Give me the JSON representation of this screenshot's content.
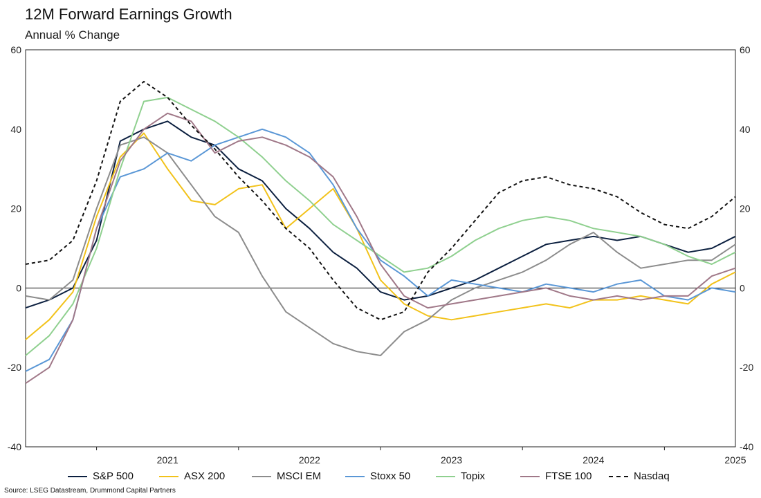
{
  "title": "12M Forward Earnings Growth",
  "subtitle": "Annual % Change",
  "source": "Source: LSEG Datastream, Drummond Capital Partners",
  "chart_data": {
    "type": "line",
    "title": "12M Forward Earnings Growth",
    "subtitle": "Annual % Change",
    "xlabel": "",
    "ylabel": "",
    "ylim": [
      -40,
      60
    ],
    "xlim": [
      "2020-07",
      "2025-07"
    ],
    "y_ticks": [
      "60",
      "40",
      "20",
      "0",
      "-20",
      "-40"
    ],
    "x_tick_labels": [
      "2021",
      "2022",
      "2023",
      "2024",
      "2025"
    ],
    "grid": false,
    "zero_line": true,
    "legend_position": "bottom",
    "series": [
      {
        "name": "S&P 500",
        "color": "#0b1f3f",
        "dash": "solid",
        "points": [
          [
            "2020-07",
            -5
          ],
          [
            "2020-09",
            -3
          ],
          [
            "2020-11",
            0
          ],
          [
            "2021-01",
            12
          ],
          [
            "2021-03",
            37
          ],
          [
            "2021-05",
            40
          ],
          [
            "2021-07",
            42
          ],
          [
            "2021-09",
            38
          ],
          [
            "2021-11",
            36
          ],
          [
            "2022-01",
            30
          ],
          [
            "2022-03",
            27
          ],
          [
            "2022-05",
            20
          ],
          [
            "2022-07",
            15
          ],
          [
            "2022-09",
            9
          ],
          [
            "2022-11",
            5
          ],
          [
            "2023-01",
            -1
          ],
          [
            "2023-03",
            -3
          ],
          [
            "2023-05",
            -2
          ],
          [
            "2023-07",
            0
          ],
          [
            "2023-09",
            2
          ],
          [
            "2023-11",
            5
          ],
          [
            "2024-01",
            8
          ],
          [
            "2024-03",
            11
          ],
          [
            "2024-05",
            12
          ],
          [
            "2024-07",
            13
          ],
          [
            "2024-09",
            12
          ],
          [
            "2024-11",
            13
          ],
          [
            "2025-01",
            11
          ],
          [
            "2025-03",
            9
          ],
          [
            "2025-05",
            10
          ],
          [
            "2025-07",
            13
          ]
        ]
      },
      {
        "name": "ASX 200",
        "color": "#f2c21a",
        "dash": "solid",
        "points": [
          [
            "2020-07",
            -13
          ],
          [
            "2020-09",
            -8
          ],
          [
            "2020-11",
            -1
          ],
          [
            "2021-01",
            18
          ],
          [
            "2021-03",
            33
          ],
          [
            "2021-05",
            39
          ],
          [
            "2021-07",
            30
          ],
          [
            "2021-09",
            22
          ],
          [
            "2021-11",
            21
          ],
          [
            "2022-01",
            25
          ],
          [
            "2022-03",
            26
          ],
          [
            "2022-05",
            15
          ],
          [
            "2022-07",
            20
          ],
          [
            "2022-09",
            25
          ],
          [
            "2022-11",
            15
          ],
          [
            "2023-01",
            2
          ],
          [
            "2023-03",
            -4
          ],
          [
            "2023-05",
            -7
          ],
          [
            "2023-07",
            -8
          ],
          [
            "2023-09",
            -7
          ],
          [
            "2023-11",
            -6
          ],
          [
            "2024-01",
            -5
          ],
          [
            "2024-03",
            -4
          ],
          [
            "2024-05",
            -5
          ],
          [
            "2024-07",
            -3
          ],
          [
            "2024-09",
            -3
          ],
          [
            "2024-11",
            -2
          ],
          [
            "2025-01",
            -3
          ],
          [
            "2025-03",
            -4
          ],
          [
            "2025-05",
            1
          ],
          [
            "2025-07",
            4
          ]
        ]
      },
      {
        "name": "MSCI EM",
        "color": "#8c8c8c",
        "dash": "solid",
        "points": [
          [
            "2020-07",
            -2
          ],
          [
            "2020-09",
            -3
          ],
          [
            "2020-11",
            2
          ],
          [
            "2021-01",
            20
          ],
          [
            "2021-03",
            36
          ],
          [
            "2021-05",
            38
          ],
          [
            "2021-07",
            34
          ],
          [
            "2021-09",
            26
          ],
          [
            "2021-11",
            18
          ],
          [
            "2022-01",
            14
          ],
          [
            "2022-03",
            3
          ],
          [
            "2022-05",
            -6
          ],
          [
            "2022-07",
            -10
          ],
          [
            "2022-09",
            -14
          ],
          [
            "2022-11",
            -16
          ],
          [
            "2023-01",
            -17
          ],
          [
            "2023-03",
            -11
          ],
          [
            "2023-05",
            -8
          ],
          [
            "2023-07",
            -3
          ],
          [
            "2023-09",
            0
          ],
          [
            "2023-11",
            2
          ],
          [
            "2024-01",
            4
          ],
          [
            "2024-03",
            7
          ],
          [
            "2024-05",
            11
          ],
          [
            "2024-07",
            14
          ],
          [
            "2024-09",
            9
          ],
          [
            "2024-11",
            5
          ],
          [
            "2025-01",
            6
          ],
          [
            "2025-03",
            7
          ],
          [
            "2025-05",
            7
          ],
          [
            "2025-07",
            11
          ]
        ]
      },
      {
        "name": "Stoxx 50",
        "color": "#5a97d6",
        "dash": "solid",
        "points": [
          [
            "2020-07",
            -21
          ],
          [
            "2020-09",
            -18
          ],
          [
            "2020-11",
            -8
          ],
          [
            "2021-01",
            15
          ],
          [
            "2021-03",
            28
          ],
          [
            "2021-05",
            30
          ],
          [
            "2021-07",
            34
          ],
          [
            "2021-09",
            32
          ],
          [
            "2021-11",
            36
          ],
          [
            "2022-01",
            38
          ],
          [
            "2022-03",
            40
          ],
          [
            "2022-05",
            38
          ],
          [
            "2022-07",
            34
          ],
          [
            "2022-09",
            26
          ],
          [
            "2022-11",
            15
          ],
          [
            "2023-01",
            7
          ],
          [
            "2023-03",
            3
          ],
          [
            "2023-05",
            -2
          ],
          [
            "2023-07",
            2
          ],
          [
            "2023-09",
            1
          ],
          [
            "2023-11",
            0
          ],
          [
            "2024-01",
            -1
          ],
          [
            "2024-03",
            1
          ],
          [
            "2024-05",
            0
          ],
          [
            "2024-07",
            -1
          ],
          [
            "2024-09",
            1
          ],
          [
            "2024-11",
            2
          ],
          [
            "2025-01",
            -2
          ],
          [
            "2025-03",
            -3
          ],
          [
            "2025-05",
            0
          ],
          [
            "2025-07",
            -1
          ]
        ]
      },
      {
        "name": "Topix",
        "color": "#8fd08f",
        "dash": "solid",
        "points": [
          [
            "2020-07",
            -17
          ],
          [
            "2020-09",
            -12
          ],
          [
            "2020-11",
            -4
          ],
          [
            "2021-01",
            10
          ],
          [
            "2021-03",
            30
          ],
          [
            "2021-05",
            47
          ],
          [
            "2021-07",
            48
          ],
          [
            "2021-09",
            45
          ],
          [
            "2021-11",
            42
          ],
          [
            "2022-01",
            38
          ],
          [
            "2022-03",
            33
          ],
          [
            "2022-05",
            27
          ],
          [
            "2022-07",
            22
          ],
          [
            "2022-09",
            16
          ],
          [
            "2022-11",
            12
          ],
          [
            "2023-01",
            8
          ],
          [
            "2023-03",
            4
          ],
          [
            "2023-05",
            5
          ],
          [
            "2023-07",
            8
          ],
          [
            "2023-09",
            12
          ],
          [
            "2023-11",
            15
          ],
          [
            "2024-01",
            17
          ],
          [
            "2024-03",
            18
          ],
          [
            "2024-05",
            17
          ],
          [
            "2024-07",
            15
          ],
          [
            "2024-09",
            14
          ],
          [
            "2024-11",
            13
          ],
          [
            "2025-01",
            11
          ],
          [
            "2025-03",
            8
          ],
          [
            "2025-05",
            6
          ],
          [
            "2025-07",
            9
          ]
        ]
      },
      {
        "name": "FTSE 100",
        "color": "#a07888",
        "dash": "solid",
        "points": [
          [
            "2020-07",
            -24
          ],
          [
            "2020-09",
            -20
          ],
          [
            "2020-11",
            -8
          ],
          [
            "2021-01",
            15
          ],
          [
            "2021-03",
            32
          ],
          [
            "2021-05",
            40
          ],
          [
            "2021-07",
            44
          ],
          [
            "2021-09",
            42
          ],
          [
            "2021-11",
            34
          ],
          [
            "2022-01",
            37
          ],
          [
            "2022-03",
            38
          ],
          [
            "2022-05",
            36
          ],
          [
            "2022-07",
            33
          ],
          [
            "2022-09",
            28
          ],
          [
            "2022-11",
            18
          ],
          [
            "2023-01",
            6
          ],
          [
            "2023-03",
            -2
          ],
          [
            "2023-05",
            -5
          ],
          [
            "2023-07",
            -4
          ],
          [
            "2023-09",
            -3
          ],
          [
            "2023-11",
            -2
          ],
          [
            "2024-01",
            -1
          ],
          [
            "2024-03",
            0
          ],
          [
            "2024-05",
            -2
          ],
          [
            "2024-07",
            -3
          ],
          [
            "2024-09",
            -2
          ],
          [
            "2024-11",
            -3
          ],
          [
            "2025-01",
            -2
          ],
          [
            "2025-03",
            -2
          ],
          [
            "2025-05",
            3
          ],
          [
            "2025-07",
            5
          ]
        ]
      },
      {
        "name": "Nasdaq",
        "color": "#111111",
        "dash": "dashed",
        "points": [
          [
            "2020-07",
            6
          ],
          [
            "2020-09",
            7
          ],
          [
            "2020-11",
            12
          ],
          [
            "2021-01",
            27
          ],
          [
            "2021-03",
            47
          ],
          [
            "2021-05",
            52
          ],
          [
            "2021-07",
            48
          ],
          [
            "2021-09",
            41
          ],
          [
            "2021-11",
            35
          ],
          [
            "2022-01",
            28
          ],
          [
            "2022-03",
            22
          ],
          [
            "2022-05",
            15
          ],
          [
            "2022-07",
            10
          ],
          [
            "2022-09",
            2
          ],
          [
            "2022-11",
            -5
          ],
          [
            "2023-01",
            -8
          ],
          [
            "2023-03",
            -6
          ],
          [
            "2023-05",
            4
          ],
          [
            "2023-07",
            10
          ],
          [
            "2023-09",
            17
          ],
          [
            "2023-11",
            24
          ],
          [
            "2024-01",
            27
          ],
          [
            "2024-03",
            28
          ],
          [
            "2024-05",
            26
          ],
          [
            "2024-07",
            25
          ],
          [
            "2024-09",
            23
          ],
          [
            "2024-11",
            19
          ],
          [
            "2025-01",
            16
          ],
          [
            "2025-03",
            15
          ],
          [
            "2025-05",
            18
          ],
          [
            "2025-07",
            23
          ]
        ]
      }
    ]
  }
}
